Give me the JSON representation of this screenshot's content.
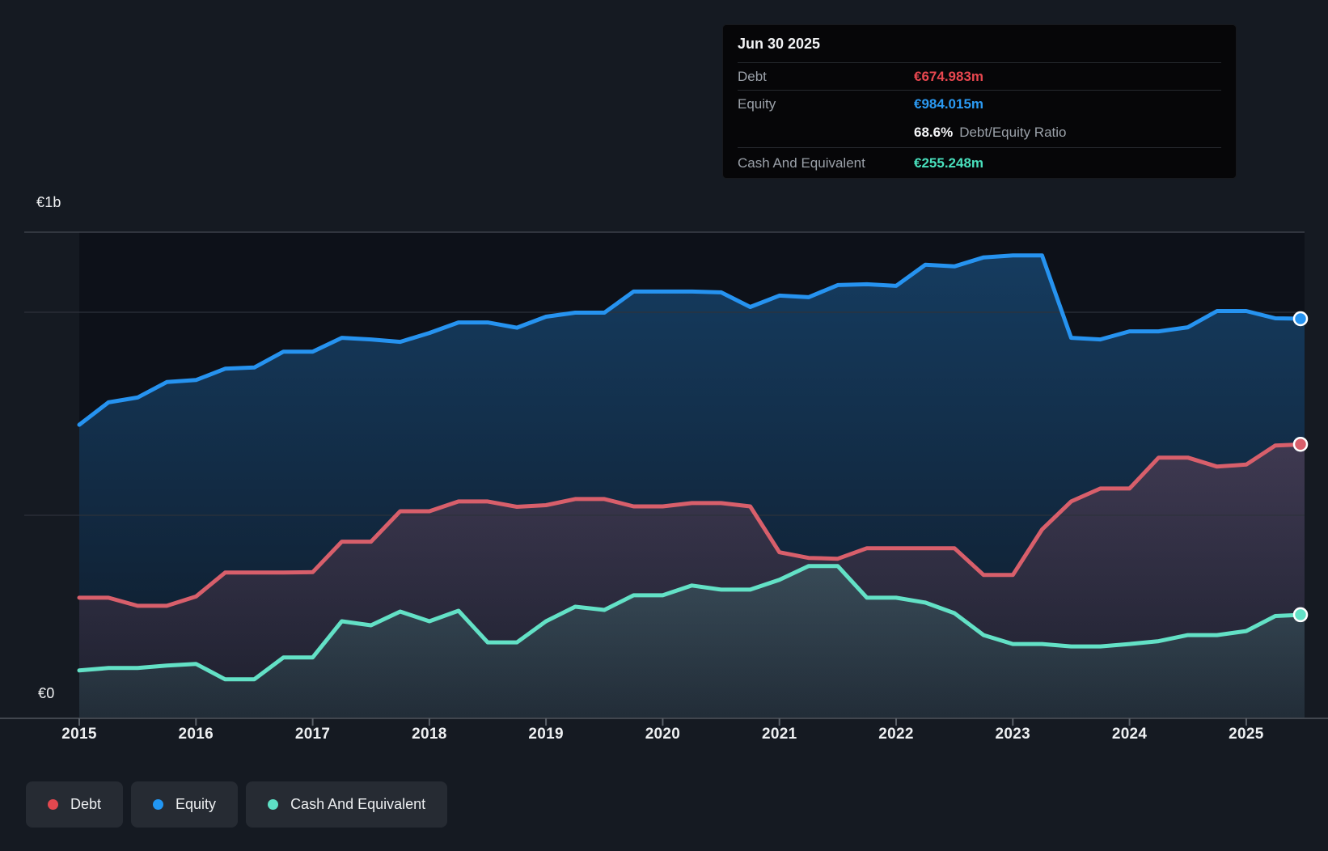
{
  "tooltip": {
    "title": "Jun 30 2025",
    "debt_label": "Debt",
    "debt_value": "€674.983m",
    "equity_label": "Equity",
    "equity_value": "€984.015m",
    "ratio_value": "68.6%",
    "ratio_label": "Debt/Equity Ratio",
    "cash_label": "Cash And Equivalent",
    "cash_value": "€255.248m"
  },
  "y_axis": {
    "top_label": "€1b",
    "bottom_label": "€0"
  },
  "x_axis": {
    "years": [
      "2015",
      "2016",
      "2017",
      "2018",
      "2019",
      "2020",
      "2021",
      "2022",
      "2023",
      "2024",
      "2025"
    ]
  },
  "legend": {
    "items": [
      {
        "label": "Debt",
        "color": "#e2484f"
      },
      {
        "label": "Equity",
        "color": "#2196f3"
      },
      {
        "label": "Cash And Equivalent",
        "color": "#5ee0c5"
      }
    ]
  },
  "colors": {
    "background": "#151a22",
    "plot_background": "#0d1119",
    "debt_line": "#d85f6b",
    "debt_accent": "#e8474f",
    "equity_line": "#2693f0",
    "equity_accent": "#2b9af3",
    "cash_line": "#63e1c6",
    "cash_accent": "#49e0bd",
    "gridline": "#2d323b",
    "plot_top_border": "#3c414a",
    "axis_line": "#41464e",
    "tick": "#5b6169"
  },
  "chart_data": {
    "type": "area",
    "title": "Debt, Equity and Cash history (EUR millions)",
    "x_unit": "decimal_year",
    "xlim": [
      2015.0,
      2025.5
    ],
    "ylim_millions": [
      0,
      1200
    ],
    "gridline_values_millions": [
      1000,
      500
    ],
    "grid": true,
    "legend_position": "bottom-left",
    "last_point_date": "Jun 30 2025",
    "x": [
      2015.0,
      2015.25,
      2015.5,
      2015.75,
      2016.0,
      2016.25,
      2016.5,
      2016.75,
      2017.0,
      2017.25,
      2017.5,
      2017.75,
      2018.0,
      2018.25,
      2018.5,
      2018.75,
      2019.0,
      2019.25,
      2019.5,
      2019.75,
      2020.0,
      2020.25,
      2020.5,
      2020.75,
      2021.0,
      2021.25,
      2021.5,
      2021.75,
      2022.0,
      2022.25,
      2022.5,
      2022.75,
      2023.0,
      2023.25,
      2023.5,
      2023.75,
      2024.0,
      2024.25,
      2024.5,
      2024.75,
      2025.0,
      2025.25,
      2025.5
    ],
    "series": [
      {
        "name": "Debt",
        "color": "#d85f6b",
        "values": [
          297,
          297,
          277,
          277,
          300,
          359,
          359,
          359,
          360,
          435,
          435,
          510,
          510,
          534,
          534,
          521,
          525,
          540,
          540,
          522,
          522,
          530,
          530,
          522,
          409,
          395,
          393,
          419,
          419,
          419,
          419,
          353,
          353,
          465,
          534,
          566,
          566,
          642,
          642,
          620,
          625,
          672,
          674.983
        ]
      },
      {
        "name": "Equity",
        "color": "#2693f0",
        "values": [
          723,
          778,
          790,
          828,
          833,
          861,
          864,
          903,
          903,
          937,
          933,
          927,
          949,
          975,
          975,
          962,
          989,
          999,
          999,
          1051,
          1051,
          1051,
          1049,
          1013,
          1041,
          1037,
          1067,
          1069,
          1065,
          1117,
          1113,
          1135,
          1140,
          1140,
          937,
          933,
          953,
          953,
          963,
          1003,
          1003,
          985,
          984.015
        ]
      },
      {
        "name": "Cash And Equivalent",
        "color": "#63e1c6",
        "values": [
          118,
          124,
          124,
          130,
          134,
          96,
          96,
          150,
          150,
          239,
          229,
          263,
          239,
          265,
          187,
          187,
          239,
          275,
          267,
          303,
          303,
          327,
          317,
          317,
          341,
          375,
          375,
          297,
          297,
          285,
          259,
          205,
          183,
          183,
          177,
          177,
          183,
          190,
          205,
          205,
          215,
          252,
          255.248
        ]
      }
    ]
  }
}
